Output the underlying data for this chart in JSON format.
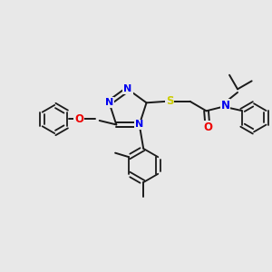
{
  "background_color": "#e8e8e8",
  "bond_color": "#1a1a1a",
  "atom_colors": {
    "N": "#0000ee",
    "O": "#ee0000",
    "S": "#cccc00",
    "C": "#1a1a1a"
  },
  "lw": 1.4,
  "figsize": [
    3.0,
    3.0
  ],
  "dpi": 100,
  "xlim": [
    0,
    10
  ],
  "ylim": [
    0,
    10
  ]
}
